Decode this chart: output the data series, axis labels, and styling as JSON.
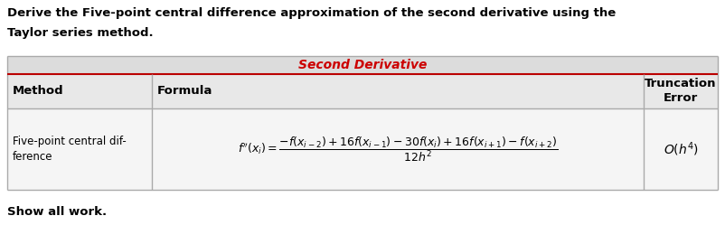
{
  "title_line1": "Derive the Five-point central difference approximation of the second derivative using the",
  "title_line2": "Taylor series method.",
  "table_header": "Second Derivative",
  "col1_header": "Method",
  "col2_header": "Formula",
  "col3_header": "Truncation\nError",
  "row1_col1": "Five-point central dif-\nference",
  "row1_col3": "$O(h^4)$",
  "footer": "Show all work.",
  "bg_color": "#e8e8e8",
  "data_row_bg": "#f5f5f5",
  "border_color": "#aaaaaa",
  "red_border": "#bb0000",
  "red_color": "#cc0000",
  "text_color": "#000000",
  "white": "#ffffff",
  "formula": "$f''(x_i) = \\dfrac{-f(x_{i-2})+16f(x_{i-1})-30f(x_i)+16f(x_{i+1})-f(x_{i+2})}{12h^2}$"
}
